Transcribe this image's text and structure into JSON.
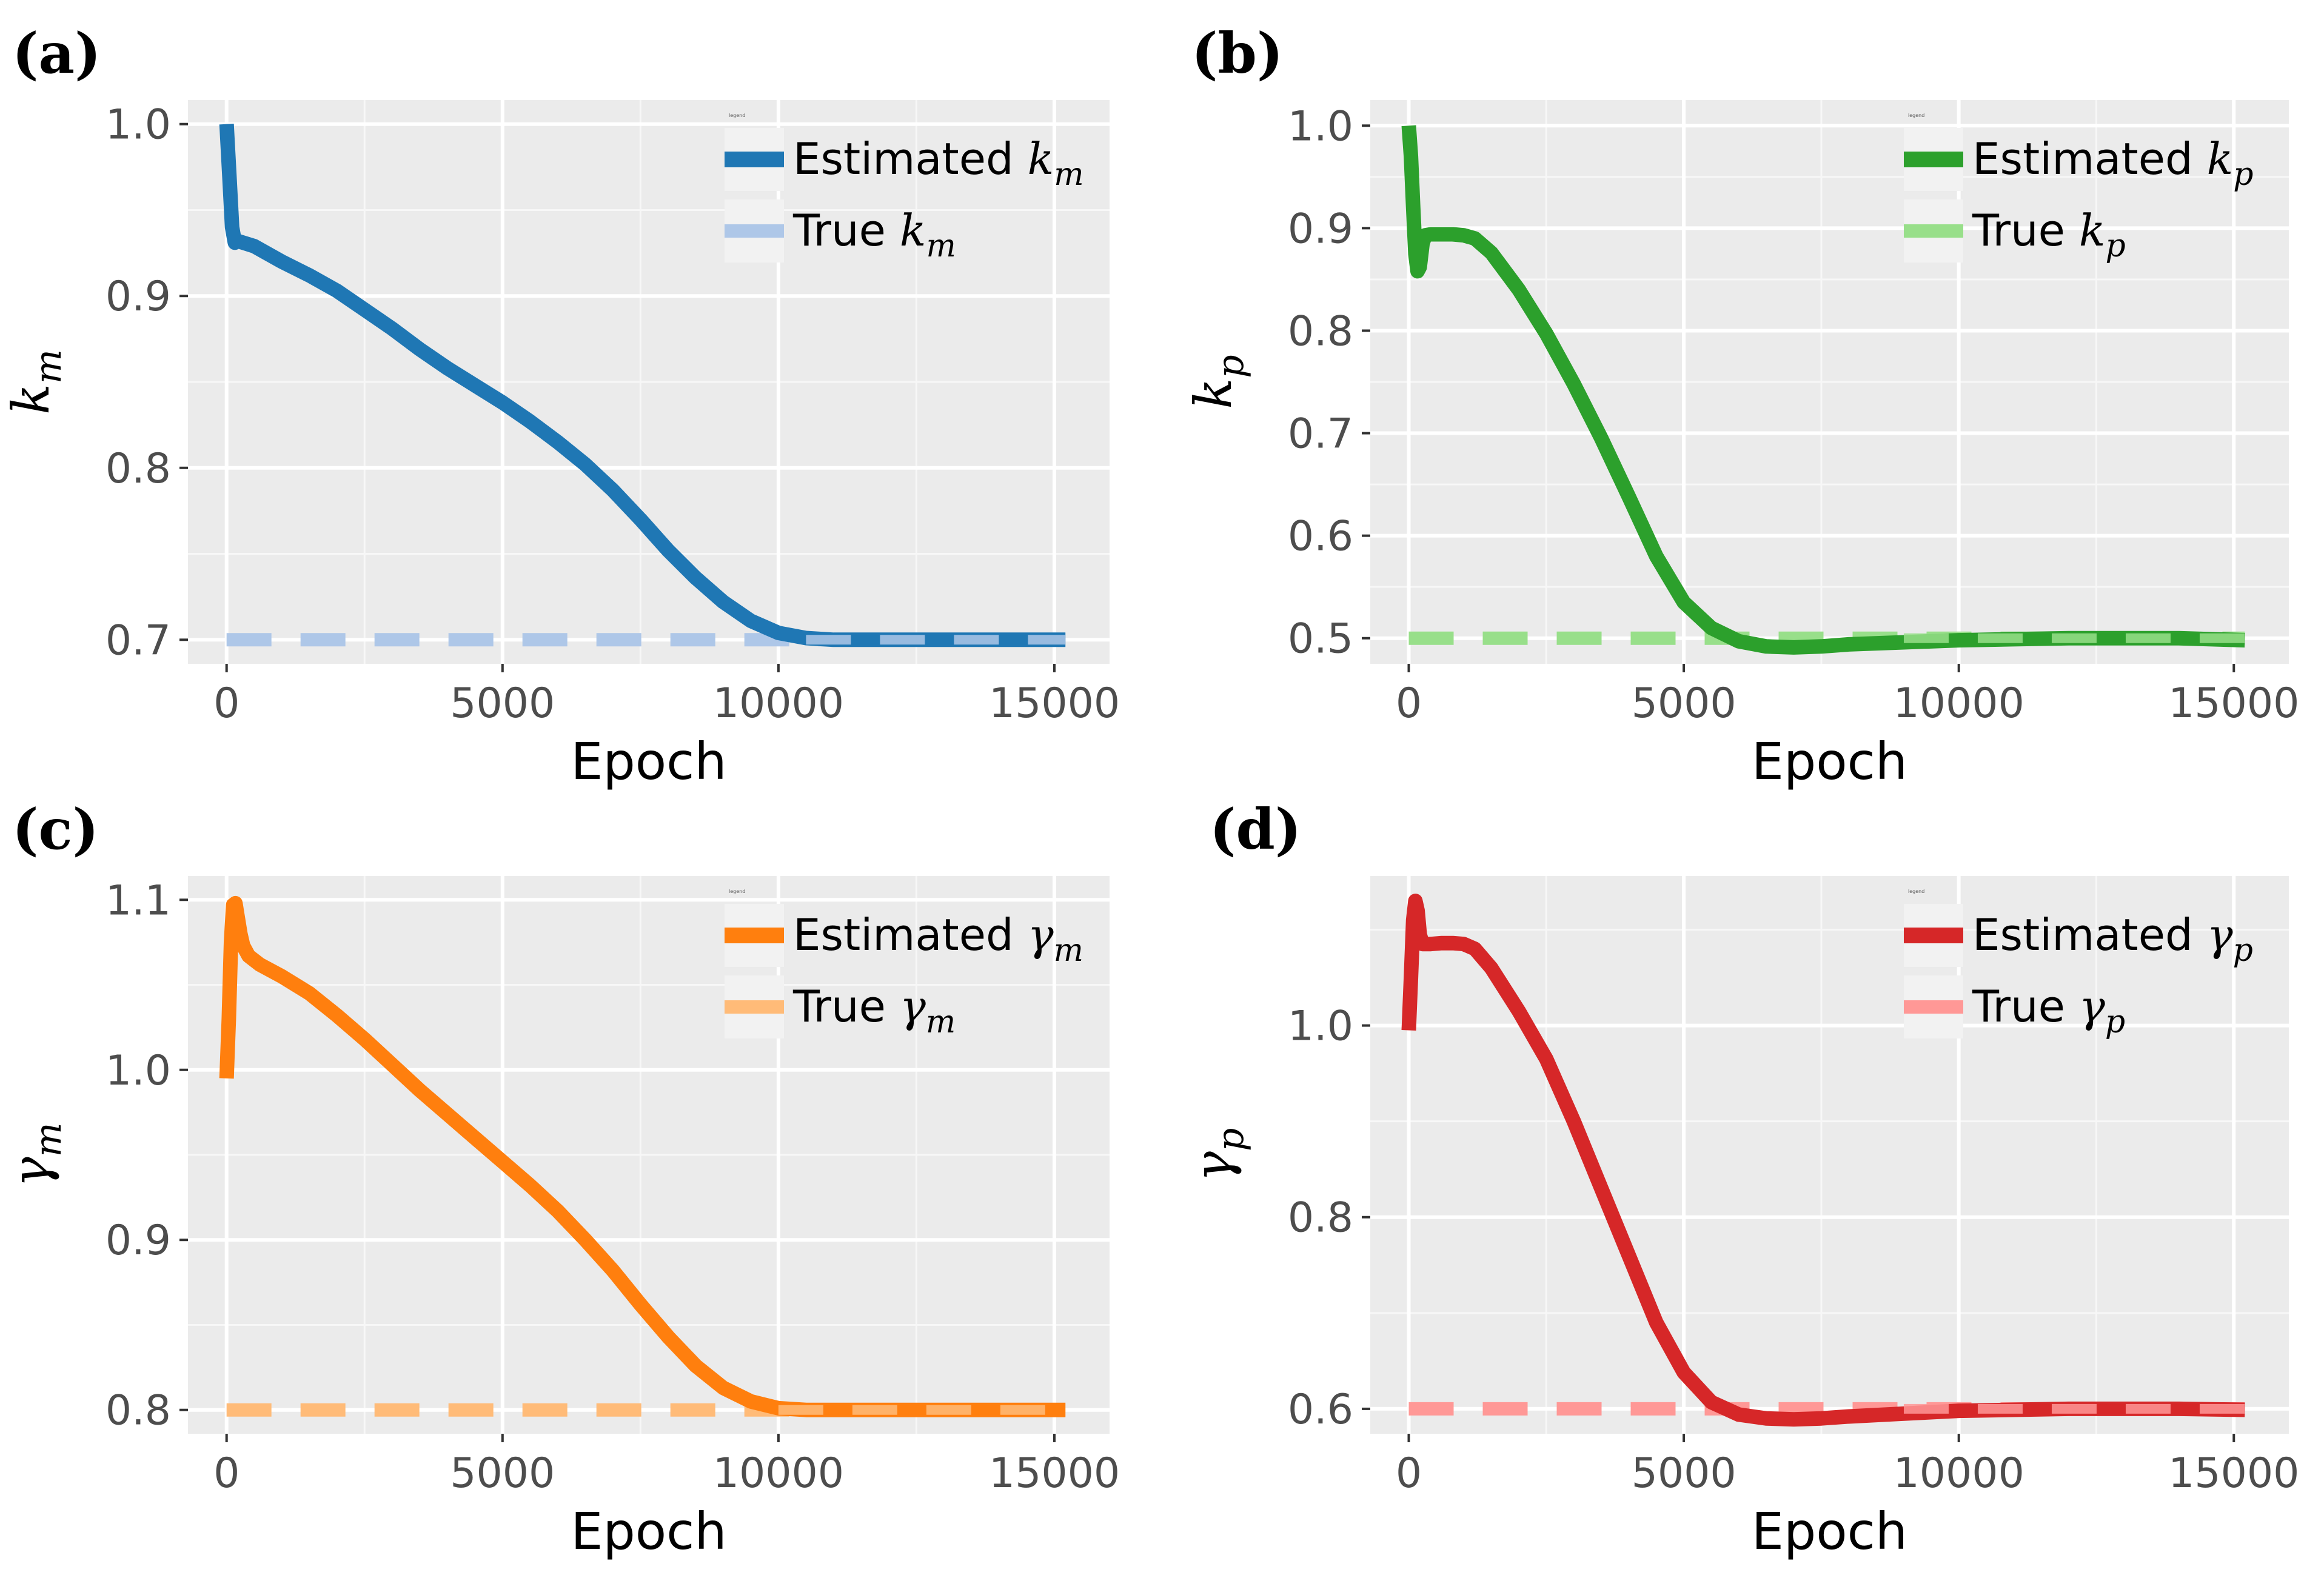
{
  "chart_data": [
    {
      "type": "line",
      "panel_label": "(a)",
      "xlabel": "Epoch",
      "ylabel_symbol": "k",
      "ylabel_sub": "m",
      "legend_title": "legend",
      "legend_position": "top-right",
      "xlim": [
        -700,
        16000
      ],
      "ylim": [
        0.686,
        1.014
      ],
      "xticks": [
        0,
        5000,
        10000,
        15000
      ],
      "xtick_labels": [
        "0",
        "5000",
        "10000",
        "15000"
      ],
      "yticks": [
        0.7,
        0.8,
        0.9,
        1.0
      ],
      "ytick_labels": [
        "0.7",
        "0.8",
        "0.9",
        "1.0"
      ],
      "grid": true,
      "series": [
        {
          "name": "estimated",
          "legend_text": "Estimated ",
          "legend_symbol": "k",
          "legend_sub": "m",
          "color": "#1f77b4",
          "style": "solid",
          "x": [
            0,
            50,
            100,
            150,
            200,
            300,
            500,
            1000,
            1500,
            2000,
            2500,
            3000,
            3500,
            4000,
            4500,
            5000,
            5500,
            6000,
            6500,
            7000,
            7500,
            8000,
            8500,
            9000,
            9500,
            10000,
            10500,
            11000,
            11500,
            12000,
            13000,
            14000,
            15200
          ],
          "values": [
            1.0,
            0.97,
            0.94,
            0.931,
            0.932,
            0.931,
            0.929,
            0.92,
            0.912,
            0.903,
            0.892,
            0.881,
            0.869,
            0.858,
            0.848,
            0.838,
            0.827,
            0.815,
            0.802,
            0.787,
            0.77,
            0.752,
            0.736,
            0.722,
            0.711,
            0.704,
            0.701,
            0.7,
            0.7,
            0.7,
            0.7,
            0.7,
            0.7
          ]
        },
        {
          "name": "true",
          "legend_text": "True ",
          "legend_symbol": "k",
          "legend_sub": "m",
          "color": "#aec7e8",
          "style": "dashed",
          "x": [
            0,
            15200
          ],
          "values": [
            0.7,
            0.7
          ]
        }
      ]
    },
    {
      "type": "line",
      "panel_label": "(b)",
      "xlabel": "Epoch",
      "ylabel_symbol": "k",
      "ylabel_sub": "p",
      "legend_title": "legend",
      "legend_position": "top-right",
      "xlim": [
        -700,
        16000
      ],
      "ylim": [
        0.475,
        1.025
      ],
      "xticks": [
        0,
        5000,
        10000,
        15000
      ],
      "xtick_labels": [
        "0",
        "5000",
        "10000",
        "15000"
      ],
      "yticks": [
        0.5,
        0.6,
        0.7,
        0.8,
        0.9,
        1.0
      ],
      "ytick_labels": [
        "0.5",
        "0.6",
        "0.7",
        "0.8",
        "0.9",
        "1.0"
      ],
      "grid": true,
      "series": [
        {
          "name": "estimated",
          "legend_text": "Estimated ",
          "legend_symbol": "k",
          "legend_sub": "p",
          "color": "#2ca02c",
          "style": "solid",
          "x": [
            0,
            40,
            80,
            120,
            160,
            200,
            250,
            300,
            400,
            600,
            800,
            1000,
            1200,
            1500,
            2000,
            2500,
            3000,
            3500,
            4000,
            4500,
            5000,
            5500,
            6000,
            6500,
            7000,
            7500,
            8000,
            9000,
            10000,
            11000,
            12000,
            13000,
            14000,
            15200
          ],
          "values": [
            1.0,
            0.97,
            0.92,
            0.875,
            0.858,
            0.862,
            0.885,
            0.893,
            0.894,
            0.894,
            0.894,
            0.893,
            0.89,
            0.876,
            0.84,
            0.797,
            0.748,
            0.695,
            0.638,
            0.58,
            0.535,
            0.51,
            0.497,
            0.492,
            0.491,
            0.492,
            0.494,
            0.496,
            0.498,
            0.499,
            0.5,
            0.5,
            0.5,
            0.498
          ]
        },
        {
          "name": "true",
          "legend_text": "True ",
          "legend_symbol": "k",
          "legend_sub": "p",
          "color": "#98df8a",
          "style": "dashed",
          "x": [
            0,
            15200
          ],
          "values": [
            0.5,
            0.5
          ]
        }
      ]
    },
    {
      "type": "line",
      "panel_label": "(c)",
      "xlabel": "Epoch",
      "ylabel_symbol": "γ",
      "ylabel_sub": "m",
      "legend_title": "legend",
      "legend_position": "top-right",
      "xlim": [
        -700,
        16000
      ],
      "ylim": [
        0.786,
        1.114
      ],
      "xticks": [
        0,
        5000,
        10000,
        15000
      ],
      "xtick_labels": [
        "0",
        "5000",
        "10000",
        "15000"
      ],
      "yticks": [
        0.8,
        0.9,
        1.0,
        1.1
      ],
      "ytick_labels": [
        "0.8",
        "0.9",
        "1.0",
        "1.1"
      ],
      "grid": true,
      "series": [
        {
          "name": "estimated",
          "legend_text": "Estimated ",
          "legend_symbol": "γ",
          "legend_sub": "m",
          "color": "#ff7f0e",
          "style": "solid",
          "x": [
            0,
            40,
            80,
            120,
            160,
            200,
            250,
            300,
            400,
            600,
            1000,
            1500,
            2000,
            2500,
            3000,
            3500,
            4000,
            4500,
            5000,
            5500,
            6000,
            6500,
            7000,
            7500,
            8000,
            8500,
            9000,
            9500,
            10000,
            10500,
            11000,
            12000,
            13000,
            14000,
            15200
          ],
          "values": [
            0.995,
            1.03,
            1.075,
            1.097,
            1.098,
            1.09,
            1.08,
            1.073,
            1.067,
            1.062,
            1.055,
            1.045,
            1.032,
            1.018,
            1.003,
            0.988,
            0.974,
            0.96,
            0.946,
            0.932,
            0.917,
            0.9,
            0.882,
            0.862,
            0.843,
            0.826,
            0.813,
            0.805,
            0.801,
            0.8,
            0.8,
            0.8,
            0.8,
            0.8,
            0.8
          ]
        },
        {
          "name": "true",
          "legend_text": "True ",
          "legend_symbol": "γ",
          "legend_sub": "m",
          "color": "#ffbb78",
          "style": "dashed",
          "x": [
            0,
            15200
          ],
          "values": [
            0.8,
            0.8
          ]
        }
      ]
    },
    {
      "type": "line",
      "panel_label": "(d)",
      "xlabel": "Epoch",
      "ylabel_symbol": "γ",
      "ylabel_sub": "p",
      "legend_title": "legend",
      "legend_position": "top-right",
      "xlim": [
        -700,
        16000
      ],
      "ylim": [
        0.574,
        1.156
      ],
      "xticks": [
        0,
        5000,
        10000,
        15000
      ],
      "xtick_labels": [
        "0",
        "5000",
        "10000",
        "15000"
      ],
      "yticks": [
        0.6,
        0.8,
        1.0
      ],
      "ytick_labels": [
        "0.6",
        "0.8",
        "1.0"
      ],
      "grid": true,
      "series": [
        {
          "name": "estimated",
          "legend_text": "Estimated ",
          "legend_symbol": "γ",
          "legend_sub": "p",
          "color": "#d62728",
          "style": "solid",
          "x": [
            0,
            40,
            80,
            120,
            160,
            200,
            250,
            300,
            400,
            600,
            800,
            1000,
            1200,
            1500,
            2000,
            2500,
            3000,
            3500,
            4000,
            4500,
            5000,
            5500,
            6000,
            6500,
            7000,
            7500,
            8000,
            9000,
            10000,
            11000,
            12000,
            13000,
            14000,
            15200
          ],
          "values": [
            0.995,
            1.05,
            1.11,
            1.13,
            1.12,
            1.095,
            1.085,
            1.085,
            1.085,
            1.086,
            1.086,
            1.085,
            1.08,
            1.06,
            1.015,
            0.965,
            0.9,
            0.83,
            0.76,
            0.69,
            0.638,
            0.607,
            0.594,
            0.59,
            0.589,
            0.59,
            0.592,
            0.595,
            0.598,
            0.599,
            0.6,
            0.6,
            0.6,
            0.599
          ]
        },
        {
          "name": "true",
          "legend_text": "True ",
          "legend_symbol": "γ",
          "legend_sub": "p",
          "color": "#ff9896",
          "style": "dashed",
          "x": [
            0,
            15200
          ],
          "values": [
            0.6,
            0.6
          ]
        }
      ]
    }
  ]
}
